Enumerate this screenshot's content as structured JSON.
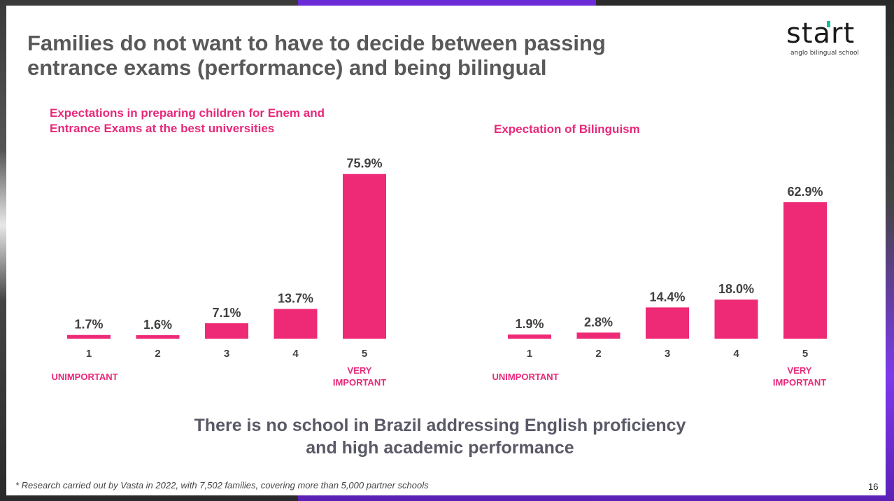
{
  "slide": {
    "title": "Families do not want to have to decide between passing entrance exams (performance) and being bilingual",
    "logo_word": "start",
    "logo_sub": "anglo bilingual school",
    "conclusion": "There is no school in Brazil addressing English proficiency and high academic performance",
    "footnote": "* Research carried out by Vasta in 2022, with 7,502 families, covering more than 5,000 partner schools",
    "page_number": "16",
    "accent_color": "#e8287a"
  },
  "chart_data": [
    {
      "type": "bar",
      "title": "Expectations in preparing children for Enem and Entrance Exams at the best universities",
      "categories": [
        "1",
        "2",
        "3",
        "4",
        "5"
      ],
      "values": [
        1.7,
        1.6,
        7.1,
        13.7,
        75.9
      ],
      "value_labels": [
        "1.7%",
        "1.6%",
        "7.1%",
        "13.7%",
        "75.9%"
      ],
      "scale_low_label": "UNIMPORTANT",
      "scale_high_label": "VERY IMPORTANT",
      "ylim": [
        0,
        80
      ],
      "grid": false,
      "bar_color": "#ee2a76"
    },
    {
      "type": "bar",
      "title": "Expectation of Bilinguism",
      "categories": [
        "1",
        "2",
        "3",
        "4",
        "5"
      ],
      "values": [
        1.9,
        2.8,
        14.4,
        18.0,
        62.9
      ],
      "value_labels": [
        "1.9%",
        "2.8%",
        "14.4%",
        "18.0%",
        "62.9%"
      ],
      "scale_low_label": "UNIMPORTANT",
      "scale_high_label": "VERY IMPORTANT",
      "ylim": [
        0,
        80
      ],
      "grid": false,
      "bar_color": "#ee2a76"
    }
  ]
}
